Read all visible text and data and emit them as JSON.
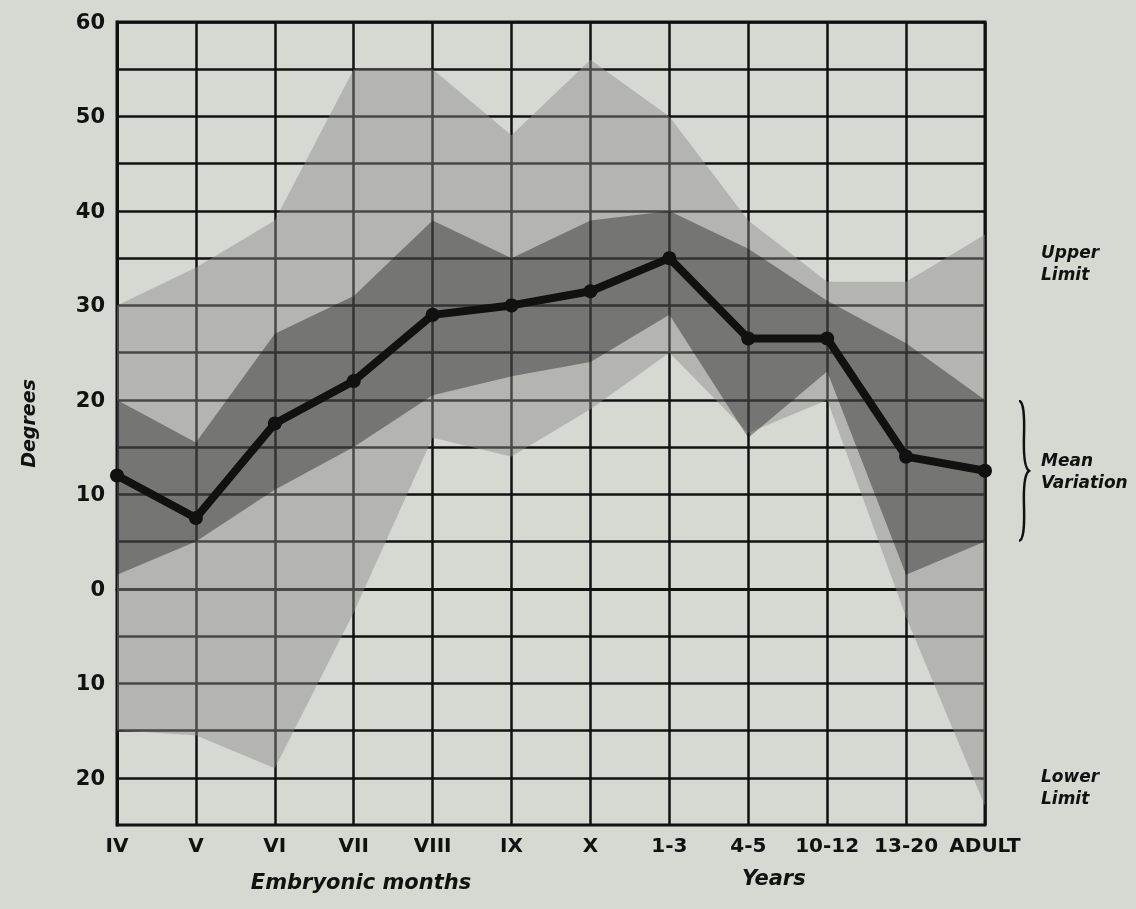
{
  "chart_data": {
    "type": "line",
    "categories": [
      "IV",
      "V",
      "VI",
      "VII",
      "VIII",
      "IX",
      "X",
      "1-3",
      "4-5",
      "10-12",
      "13-20",
      "ADULT"
    ],
    "series": [
      {
        "color": "#8c8c8a",
        "values": [
          null,
          null,
          null,
          null,
          null,
          null,
          null,
          null,
          null,
          null,
          null,
          null
        ],
        "lower": [
          -15,
          -15.5,
          -19,
          -2.5,
          16,
          14,
          19,
          25,
          16.5,
          20,
          -3,
          -23
        ],
        "upper": [
          30,
          34,
          39,
          55,
          55,
          48,
          56,
          50,
          39,
          32.5,
          32.5,
          37.5
        ]
      },
      {
        "color": "#111111",
        "values": [
          12,
          7.5,
          17.5,
          22,
          29,
          30,
          31.5,
          35,
          26.5,
          26.5,
          14,
          12.5
        ],
        "lower": [
          1.5,
          5,
          10.5,
          15,
          20.5,
          22.5,
          24,
          29,
          16,
          23,
          1.5,
          5
        ],
        "upper": [
          20,
          15.5,
          27,
          31,
          39,
          35,
          39,
          40,
          36,
          30.5,
          26,
          20
        ]
      }
    ],
    "ylabel": "Degrees",
    "xlabel": "Embryonic months",
    "ylim": [
      -25,
      60
    ],
    "yticks": [
      {
        "value": -20,
        "label": "20"
      },
      {
        "value": -15,
        "label": null
      },
      {
        "value": -10,
        "label": "10"
      },
      {
        "value": -5,
        "label": null
      },
      0,
      {
        "value": 5,
        "label": null
      },
      10,
      {
        "value": 15,
        "label": null
      },
      20,
      {
        "value": 25,
        "label": null
      },
      30,
      {
        "value": 35,
        "label": null
      },
      40,
      {
        "value": 45,
        "label": null
      },
      50,
      {
        "value": 55,
        "label": null
      },
      60
    ],
    "grid": true,
    "marker": "circle",
    "line_style": "solid",
    "annotations": [
      "Upper Limit",
      "Mean Variation",
      "Lower Limit",
      "Years"
    ]
  }
}
